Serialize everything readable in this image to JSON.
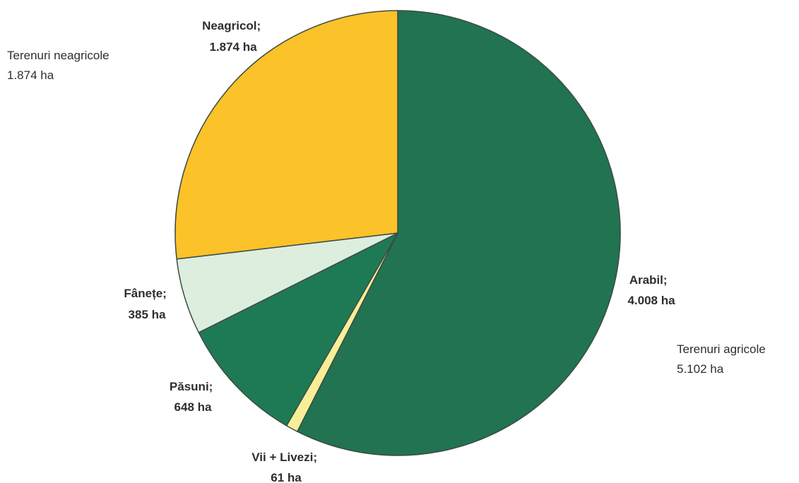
{
  "chart_data": {
    "type": "pie",
    "title": "",
    "start_angle_deg": 0,
    "direction": "clockwise",
    "slices": [
      {
        "name": "Arabil",
        "line1": "Arabil;",
        "line2": "4.008 ha",
        "value": 4008,
        "color": "#217352"
      },
      {
        "name": "Vii + Livezi",
        "line1": "Vii + Livezi;",
        "line2": "61 ha",
        "value": 61,
        "color": "#F7EE98"
      },
      {
        "name": "Păsuni",
        "line1": "Păsuni;",
        "line2": "648 ha",
        "value": 648,
        "color": "#1E7A55"
      },
      {
        "name": "Fânețe",
        "line1": "Fânețe;",
        "line2": "385 ha",
        "value": 385,
        "color": "#DDEEDF"
      },
      {
        "name": "Neagricol",
        "line1": "Neagricol;",
        "line2": "1.874 ha",
        "value": 1874,
        "color": "#FBC229"
      }
    ],
    "groups": [
      {
        "line1": "Terenuri neagricole",
        "line2": "1.874 ha",
        "value": 1874
      },
      {
        "line1": "Terenuri agricole",
        "line2": "5.102 ha",
        "value": 5102
      }
    ]
  }
}
